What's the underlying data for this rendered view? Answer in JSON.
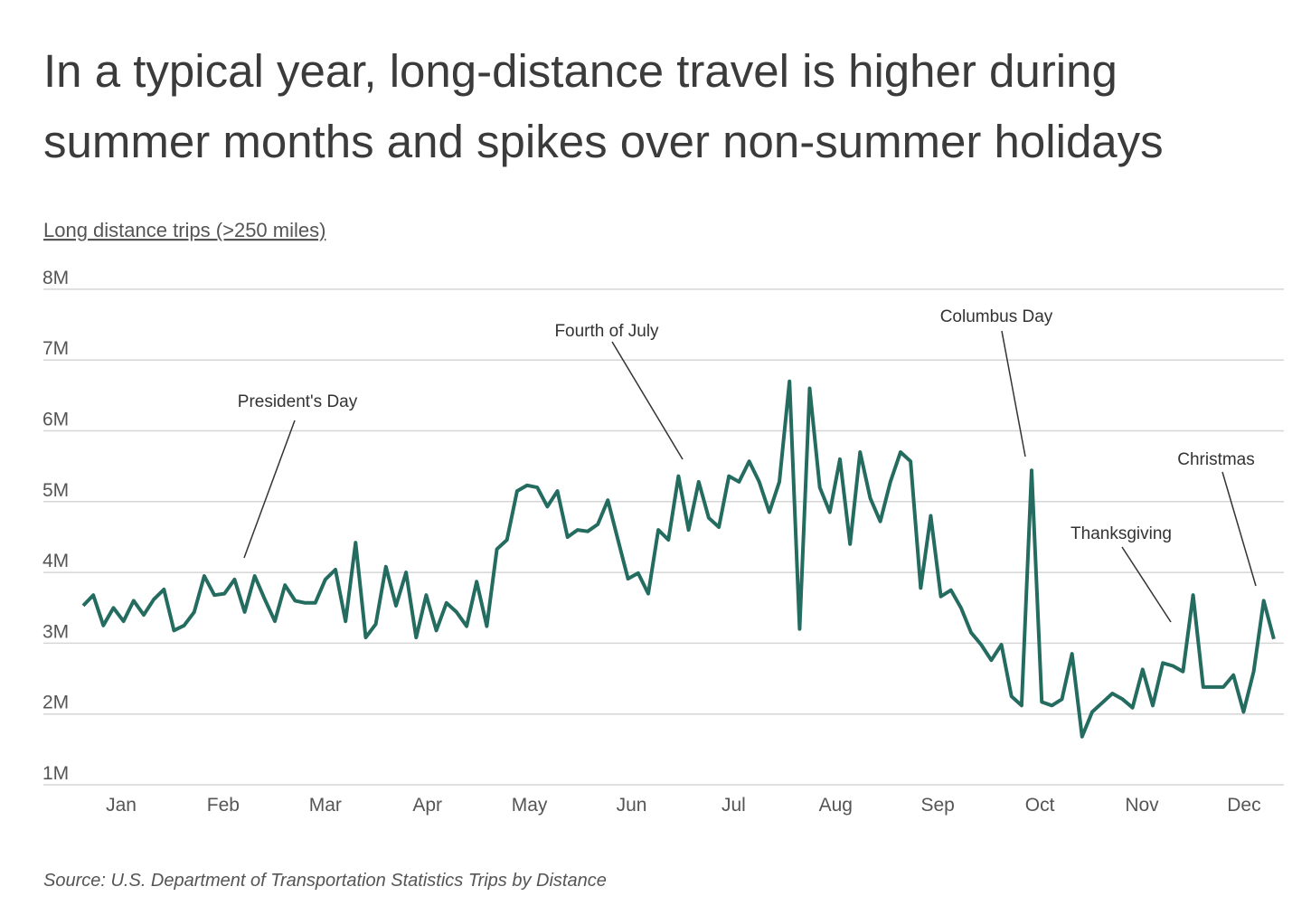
{
  "chart_data": {
    "type": "line",
    "title": "In a typical year, long-distance travel is higher during summer months and spikes over non-summer holidays",
    "title_lines": [
      "In a typical year, long-distance travel is higher during",
      "summer months and spikes over non-summer holidays"
    ],
    "ylabel": "Long distance trips (>250 miles)",
    "source": "Source:  U.S. Department of Transportation Statistics Trips by Distance",
    "ylim": [
      1,
      8
    ],
    "y_unit": "millions of trips",
    "y_ticks": [
      "1M",
      "2M",
      "3M",
      "4M",
      "5M",
      "6M",
      "7M",
      "8M"
    ],
    "x_ticks": [
      "Jan",
      "Feb",
      "Mar",
      "Apr",
      "May",
      "Jun",
      "Jul",
      "Aug",
      "Sep",
      "Oct",
      "Nov",
      "Dec"
    ],
    "grid": true,
    "line_color": "#246b60",
    "x": [
      "01-05",
      "01-08",
      "01-11",
      "01-14",
      "01-17",
      "01-20",
      "01-23",
      "01-26",
      "01-29",
      "02-01",
      "02-04",
      "02-07",
      "02-10",
      "02-13",
      "02-16",
      "02-19",
      "02-22",
      "02-25",
      "02-28",
      "03-03",
      "03-06",
      "03-09",
      "03-12",
      "03-15",
      "03-18",
      "03-21",
      "03-24",
      "03-27",
      "03-30",
      "04-02",
      "04-05",
      "04-08",
      "04-11",
      "04-14",
      "04-17",
      "04-20",
      "04-23",
      "04-26",
      "04-29",
      "05-02",
      "05-05",
      "05-08",
      "05-11",
      "05-14",
      "05-17",
      "05-20",
      "05-23",
      "05-26",
      "05-29",
      "06-01",
      "06-04",
      "06-07",
      "06-10",
      "06-13",
      "06-16",
      "06-19",
      "06-22",
      "06-25",
      "06-28",
      "07-01",
      "07-04",
      "07-07",
      "07-10",
      "07-13",
      "07-16",
      "07-19",
      "07-22",
      "07-25",
      "07-28",
      "07-31",
      "08-03",
      "08-06",
      "08-09",
      "08-12",
      "08-15",
      "08-18",
      "08-21",
      "08-24",
      "08-27",
      "08-30",
      "09-02",
      "09-05",
      "09-08",
      "09-11",
      "09-14",
      "09-17",
      "09-20",
      "09-23",
      "09-26",
      "09-29",
      "10-02",
      "10-05",
      "10-08",
      "10-11",
      "10-14",
      "10-17",
      "10-20",
      "10-23",
      "10-26",
      "10-29",
      "11-01",
      "11-04",
      "11-07",
      "11-10",
      "11-13",
      "11-16",
      "11-19",
      "11-22",
      "11-25",
      "11-28",
      "12-01",
      "12-04",
      "12-07",
      "12-10",
      "12-13",
      "12-16",
      "12-19",
      "12-22",
      "12-25"
    ],
    "values": [
      3.53,
      3.68,
      3.25,
      3.5,
      3.31,
      3.6,
      3.4,
      3.62,
      3.76,
      3.18,
      3.25,
      3.44,
      3.95,
      3.68,
      3.7,
      3.9,
      3.44,
      3.95,
      3.62,
      3.31,
      3.82,
      3.6,
      3.57,
      3.57,
      3.9,
      4.04,
      3.31,
      4.42,
      3.08,
      3.27,
      4.08,
      3.53,
      4.0,
      3.08,
      3.68,
      3.18,
      3.57,
      3.44,
      3.24,
      3.87,
      3.24,
      4.33,
      4.46,
      5.15,
      5.23,
      5.2,
      4.93,
      5.15,
      4.5,
      4.6,
      4.58,
      4.68,
      5.02,
      4.46,
      3.91,
      3.99,
      3.7,
      4.6,
      4.46,
      5.36,
      4.6,
      5.28,
      4.77,
      4.64,
      5.36,
      5.28,
      5.57,
      5.28,
      4.85,
      5.28,
      6.7,
      3.2,
      6.6,
      5.2,
      4.85,
      5.6,
      4.4,
      5.7,
      5.05,
      4.72,
      5.28,
      5.7,
      5.57,
      3.78,
      4.8,
      3.66,
      3.75,
      3.5,
      3.15,
      2.98,
      2.76,
      2.98,
      2.25,
      2.12,
      5.44,
      2.17,
      2.12,
      2.21,
      2.85,
      1.68,
      2.03,
      2.16,
      2.29,
      2.21,
      2.09,
      2.63,
      2.12,
      2.72,
      2.68,
      2.6,
      3.68,
      2.38,
      2.38,
      2.38,
      2.55,
      2.03,
      2.6,
      3.6,
      3.06
    ],
    "annotations": [
      {
        "label": "President's Day",
        "x": "02-18"
      },
      {
        "label": "Fourth of July",
        "x": "07-04"
      },
      {
        "label": "Columbus Day",
        "x": "10-14"
      },
      {
        "label": "Thanksgiving",
        "x": "11-28"
      },
      {
        "label": "Christmas",
        "x": "12-25"
      }
    ]
  }
}
